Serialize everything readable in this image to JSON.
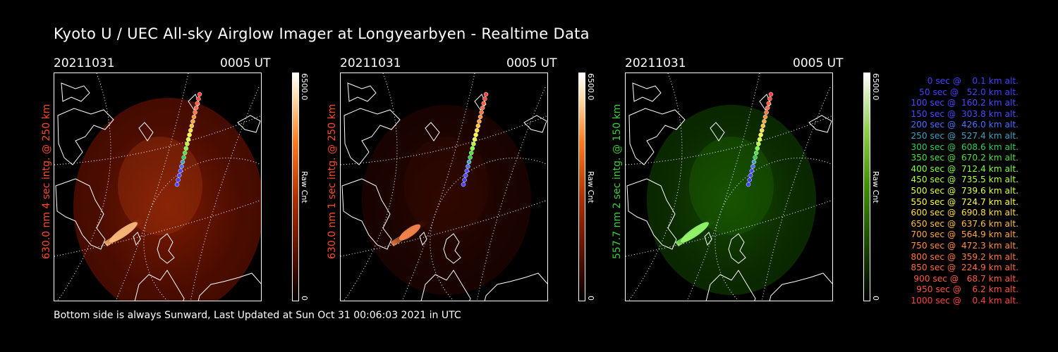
{
  "title": "Kyoto U / UEC All-sky Airglow Imager at Longyearbyen - Realtime Data",
  "footer": "Bottom side is always Sunward, Last Updated at Sun Oct 31 00:06:03 2021 in UTC",
  "panels": [
    {
      "date": "20211031",
      "time": "0005 UT",
      "ylabel": "630.0 nm 4 sec intg. @ 250 km",
      "ylabel_color": "#ff4a2a",
      "cbar_max": "6500.0",
      "cbar_min": "0",
      "cbar_unit": "Raw Cnt",
      "palette": "red"
    },
    {
      "date": "20211031",
      "time": "0005 UT",
      "ylabel": "630.0 nm 1 sec intg. @ 250 km",
      "ylabel_color": "#ff4a2a",
      "cbar_max": "6500.0",
      "cbar_min": "0",
      "cbar_unit": "Raw Cnt",
      "palette": "red"
    },
    {
      "date": "20211031",
      "time": "0005 UT",
      "ylabel": "557.7 nm 2 sec intg. @ 150 km",
      "ylabel_color": "#3ad13a",
      "cbar_max": "6500.0",
      "cbar_min": "0",
      "cbar_unit": "Raw Cnt",
      "palette": "green"
    }
  ],
  "trajectory_legend": [
    {
      "text": "   0 sec @    0.1 km alt.",
      "color": "#4040ff"
    },
    {
      "text": "  50 sec @   52.0 km alt.",
      "color": "#4040ff"
    },
    {
      "text": " 100 sec @  160.2 km alt.",
      "color": "#4a4aff"
    },
    {
      "text": " 150 sec @  303.8 km alt.",
      "color": "#4a4aff"
    },
    {
      "text": " 200 sec @  426.0 km alt.",
      "color": "#4a70ff"
    },
    {
      "text": " 250 sec @  527.4 km alt.",
      "color": "#40a0c0"
    },
    {
      "text": " 300 sec @  608.6 km alt.",
      "color": "#30d060"
    },
    {
      "text": " 350 sec @  670.2 km alt.",
      "color": "#50e040"
    },
    {
      "text": " 400 sec @  712.4 km alt.",
      "color": "#80ff40"
    },
    {
      "text": " 450 sec @  735.5 km alt.",
      "color": "#b0ff40"
    },
    {
      "text": " 500 sec @  739.6 km alt.",
      "color": "#e0ff40"
    },
    {
      "text": " 550 sec @  724.7 km alt.",
      "color": "#ffff40"
    },
    {
      "text": " 600 sec @  690.8 km alt.",
      "color": "#ffe040"
    },
    {
      "text": " 650 sec @  637.6 km alt.",
      "color": "#ffc040"
    },
    {
      "text": " 700 sec @  564.9 km alt.",
      "color": "#ffa840"
    },
    {
      "text": " 750 sec @  472.3 km alt.",
      "color": "#ff9040"
    },
    {
      "text": " 800 sec @  359.2 km alt.",
      "color": "#ff7840"
    },
    {
      "text": " 850 sec @  224.9 km alt.",
      "color": "#ff6a40"
    },
    {
      "text": " 900 sec @   68.7 km alt.",
      "color": "#ff5a40"
    },
    {
      "text": " 950 sec @    6.2 km alt.",
      "color": "#ff5040"
    },
    {
      "text": "1000 sec @    0.4 km alt.",
      "color": "#ff4040"
    }
  ]
}
